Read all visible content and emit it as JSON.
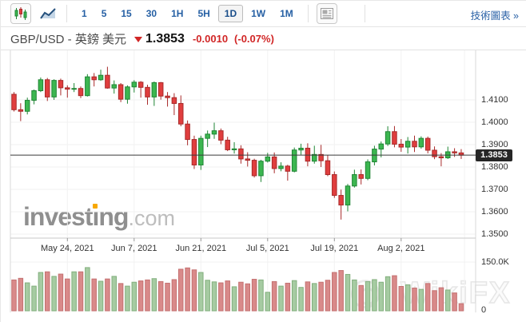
{
  "toolbar": {
    "candlestick_view_tooltip": "candlestick-chart-type",
    "line_view_tooltip": "line-chart-type",
    "intervals": [
      "1",
      "5",
      "15",
      "30",
      "1H",
      "5H",
      "1D",
      "1W",
      "1M"
    ],
    "selected_interval": "1D",
    "link_label": "技術圖表 »"
  },
  "header": {
    "pair_label": "GBP/USD - 英鎊 美元",
    "last_price": "1.3853",
    "change": "-0.0010",
    "change_percent": "(-0.07%)"
  },
  "watermarks": {
    "brand_main": "invest",
    "brand_i": "ı",
    "brand_tail": "ng",
    "brand_suffix": ".com",
    "brand2": "WikiFX"
  },
  "chart_data": {
    "type": "candlestick_with_volume",
    "pair": "GBP/USD",
    "interval": "1D",
    "y_axis_ticks": [
      "1.4100",
      "1.4000",
      "1.3900",
      "1.3800",
      "1.3700",
      "1.3600",
      "1.3500"
    ],
    "y_tick_prices": [
      1.41,
      1.4,
      1.39,
      1.38,
      1.37,
      1.36,
      1.35
    ],
    "y_axis_range": [
      1.348,
      1.432
    ],
    "last_price": 1.3853,
    "last_price_label": "1.3853",
    "x_axis_labels": [
      "May 24, 2021",
      "Jun 7, 2021",
      "Jun 21, 2021",
      "Jul 5, 2021",
      "Jul 19, 2021",
      "Aug 2, 2021"
    ],
    "x_label_candle_index": [
      8,
      18,
      28,
      38,
      48,
      58
    ],
    "volume_axis_ticks": [
      "150.0K",
      "0"
    ],
    "volume_axis_max": 150,
    "grid": true,
    "colors": {
      "up_fill": "#3cb650",
      "up_stroke": "#1f8634",
      "down_fill": "#e03e3e",
      "down_stroke": "#a82a2a",
      "vol_up_fill": "#a6cba2",
      "vol_up_stroke": "#82af7d",
      "vol_down_fill": "#d98a8a",
      "vol_down_stroke": "#c47070",
      "grid": "#f2f2f2",
      "axis": "#d9d9d9",
      "price_line": "#3a3a3a"
    },
    "candles": [
      {
        "o": 1.4125,
        "h": 1.4135,
        "l": 1.4048,
        "c": 1.4056,
        "v": 95
      },
      {
        "o": 1.4056,
        "h": 1.4085,
        "l": 1.4005,
        "c": 1.4049,
        "v": 100
      },
      {
        "o": 1.4049,
        "h": 1.411,
        "l": 1.4035,
        "c": 1.4098,
        "v": 86
      },
      {
        "o": 1.4098,
        "h": 1.4146,
        "l": 1.408,
        "c": 1.4141,
        "v": 76
      },
      {
        "o": 1.4141,
        "h": 1.42,
        "l": 1.4135,
        "c": 1.419,
        "v": 118
      },
      {
        "o": 1.419,
        "h": 1.4198,
        "l": 1.4095,
        "c": 1.4113,
        "v": 120
      },
      {
        "o": 1.4113,
        "h": 1.4192,
        "l": 1.41,
        "c": 1.4187,
        "v": 106
      },
      {
        "o": 1.4187,
        "h": 1.4195,
        "l": 1.412,
        "c": 1.4154,
        "v": 113
      },
      {
        "o": 1.4154,
        "h": 1.4165,
        "l": 1.411,
        "c": 1.4148,
        "v": 98
      },
      {
        "o": 1.4148,
        "h": 1.4175,
        "l": 1.4135,
        "c": 1.4151,
        "v": 120
      },
      {
        "o": 1.4151,
        "h": 1.416,
        "l": 1.4108,
        "c": 1.4119,
        "v": 120
      },
      {
        "o": 1.4119,
        "h": 1.4215,
        "l": 1.4115,
        "c": 1.4203,
        "v": 133
      },
      {
        "o": 1.4203,
        "h": 1.422,
        "l": 1.416,
        "c": 1.419,
        "v": 98
      },
      {
        "o": 1.419,
        "h": 1.4235,
        "l": 1.4185,
        "c": 1.421,
        "v": 91
      },
      {
        "o": 1.421,
        "h": 1.4248,
        "l": 1.415,
        "c": 1.4153,
        "v": 98
      },
      {
        "o": 1.4153,
        "h": 1.4187,
        "l": 1.4128,
        "c": 1.4168,
        "v": 106
      },
      {
        "o": 1.4168,
        "h": 1.4175,
        "l": 1.409,
        "c": 1.4103,
        "v": 84
      },
      {
        "o": 1.4103,
        "h": 1.4165,
        "l": 1.4083,
        "c": 1.4158,
        "v": 76
      },
      {
        "o": 1.4158,
        "h": 1.4188,
        "l": 1.4133,
        "c": 1.4179,
        "v": 88
      },
      {
        "o": 1.4179,
        "h": 1.4184,
        "l": 1.411,
        "c": 1.4156,
        "v": 92
      },
      {
        "o": 1.4156,
        "h": 1.4168,
        "l": 1.4078,
        "c": 1.4113,
        "v": 95
      },
      {
        "o": 1.4113,
        "h": 1.4182,
        "l": 1.4073,
        "c": 1.4177,
        "v": 99
      },
      {
        "o": 1.4177,
        "h": 1.418,
        "l": 1.4101,
        "c": 1.4117,
        "v": 90
      },
      {
        "o": 1.4117,
        "h": 1.4135,
        "l": 1.407,
        "c": 1.411,
        "v": 85
      },
      {
        "o": 1.411,
        "h": 1.413,
        "l": 1.4032,
        "c": 1.4084,
        "v": 96
      },
      {
        "o": 1.4084,
        "h": 1.412,
        "l": 1.3982,
        "c": 1.3992,
        "v": 128
      },
      {
        "o": 1.3992,
        "h": 1.4008,
        "l": 1.3897,
        "c": 1.3923,
        "v": 132
      },
      {
        "o": 1.3923,
        "h": 1.394,
        "l": 1.3791,
        "c": 1.3809,
        "v": 126
      },
      {
        "o": 1.3809,
        "h": 1.394,
        "l": 1.3787,
        "c": 1.3928,
        "v": 118
      },
      {
        "o": 1.3928,
        "h": 1.3963,
        "l": 1.3889,
        "c": 1.3947,
        "v": 94
      },
      {
        "o": 1.3947,
        "h": 1.3998,
        "l": 1.3926,
        "c": 1.3962,
        "v": 89
      },
      {
        "o": 1.3962,
        "h": 1.3972,
        "l": 1.3902,
        "c": 1.392,
        "v": 86
      },
      {
        "o": 1.392,
        "h": 1.3935,
        "l": 1.3871,
        "c": 1.3877,
        "v": 92
      },
      {
        "o": 1.3877,
        "h": 1.3911,
        "l": 1.386,
        "c": 1.3881,
        "v": 74
      },
      {
        "o": 1.3881,
        "h": 1.3897,
        "l": 1.3815,
        "c": 1.3836,
        "v": 88
      },
      {
        "o": 1.3836,
        "h": 1.3866,
        "l": 1.3802,
        "c": 1.383,
        "v": 83
      },
      {
        "o": 1.383,
        "h": 1.3837,
        "l": 1.3753,
        "c": 1.3761,
        "v": 97
      },
      {
        "o": 1.3761,
        "h": 1.3832,
        "l": 1.3733,
        "c": 1.3826,
        "v": 95
      },
      {
        "o": 1.3826,
        "h": 1.3863,
        "l": 1.382,
        "c": 1.3845,
        "v": 57
      },
      {
        "o": 1.3845,
        "h": 1.3865,
        "l": 1.3772,
        "c": 1.3793,
        "v": 90
      },
      {
        "o": 1.3793,
        "h": 1.3821,
        "l": 1.3781,
        "c": 1.3804,
        "v": 76
      },
      {
        "o": 1.3804,
        "h": 1.381,
        "l": 1.3739,
        "c": 1.3781,
        "v": 85
      },
      {
        "o": 1.3781,
        "h": 1.3887,
        "l": 1.3776,
        "c": 1.3876,
        "v": 93
      },
      {
        "o": 1.3876,
        "h": 1.3904,
        "l": 1.3855,
        "c": 1.3884,
        "v": 72
      },
      {
        "o": 1.3884,
        "h": 1.3906,
        "l": 1.3803,
        "c": 1.3826,
        "v": 89
      },
      {
        "o": 1.3826,
        "h": 1.3895,
        "l": 1.3815,
        "c": 1.3856,
        "v": 84
      },
      {
        "o": 1.3856,
        "h": 1.3899,
        "l": 1.38,
        "c": 1.3828,
        "v": 88
      },
      {
        "o": 1.3828,
        "h": 1.3853,
        "l": 1.3759,
        "c": 1.3766,
        "v": 94
      },
      {
        "o": 1.3766,
        "h": 1.378,
        "l": 1.3662,
        "c": 1.3673,
        "v": 118
      },
      {
        "o": 1.3673,
        "h": 1.3699,
        "l": 1.3565,
        "c": 1.363,
        "v": 124
      },
      {
        "o": 1.363,
        "h": 1.3724,
        "l": 1.3602,
        "c": 1.3715,
        "v": 112
      },
      {
        "o": 1.3715,
        "h": 1.3788,
        "l": 1.3708,
        "c": 1.3766,
        "v": 95
      },
      {
        "o": 1.3766,
        "h": 1.3789,
        "l": 1.3722,
        "c": 1.3749,
        "v": 78
      },
      {
        "o": 1.3749,
        "h": 1.3834,
        "l": 1.3741,
        "c": 1.3823,
        "v": 90
      },
      {
        "o": 1.3823,
        "h": 1.3895,
        "l": 1.3807,
        "c": 1.388,
        "v": 96
      },
      {
        "o": 1.388,
        "h": 1.3914,
        "l": 1.3843,
        "c": 1.3903,
        "v": 88
      },
      {
        "o": 1.3903,
        "h": 1.3982,
        "l": 1.3894,
        "c": 1.3958,
        "v": 105
      },
      {
        "o": 1.3958,
        "h": 1.3983,
        "l": 1.3888,
        "c": 1.3902,
        "v": 108
      },
      {
        "o": 1.3902,
        "h": 1.3925,
        "l": 1.3868,
        "c": 1.3889,
        "v": 75
      },
      {
        "o": 1.3889,
        "h": 1.3934,
        "l": 1.386,
        "c": 1.3915,
        "v": 80
      },
      {
        "o": 1.3915,
        "h": 1.394,
        "l": 1.3867,
        "c": 1.389,
        "v": 70
      },
      {
        "o": 1.389,
        "h": 1.3937,
        "l": 1.3882,
        "c": 1.3928,
        "v": 66
      },
      {
        "o": 1.3928,
        "h": 1.3936,
        "l": 1.3861,
        "c": 1.3875,
        "v": 84
      },
      {
        "o": 1.3875,
        "h": 1.3892,
        "l": 1.3835,
        "c": 1.3846,
        "v": 62
      },
      {
        "o": 1.3846,
        "h": 1.3862,
        "l": 1.3803,
        "c": 1.3841,
        "v": 71
      },
      {
        "o": 1.3841,
        "h": 1.3891,
        "l": 1.3836,
        "c": 1.3868,
        "v": 64
      },
      {
        "o": 1.3868,
        "h": 1.3884,
        "l": 1.3845,
        "c": 1.3863,
        "v": 55
      },
      {
        "o": 1.3863,
        "h": 1.388,
        "l": 1.3836,
        "c": 1.3853,
        "v": 22
      }
    ]
  }
}
